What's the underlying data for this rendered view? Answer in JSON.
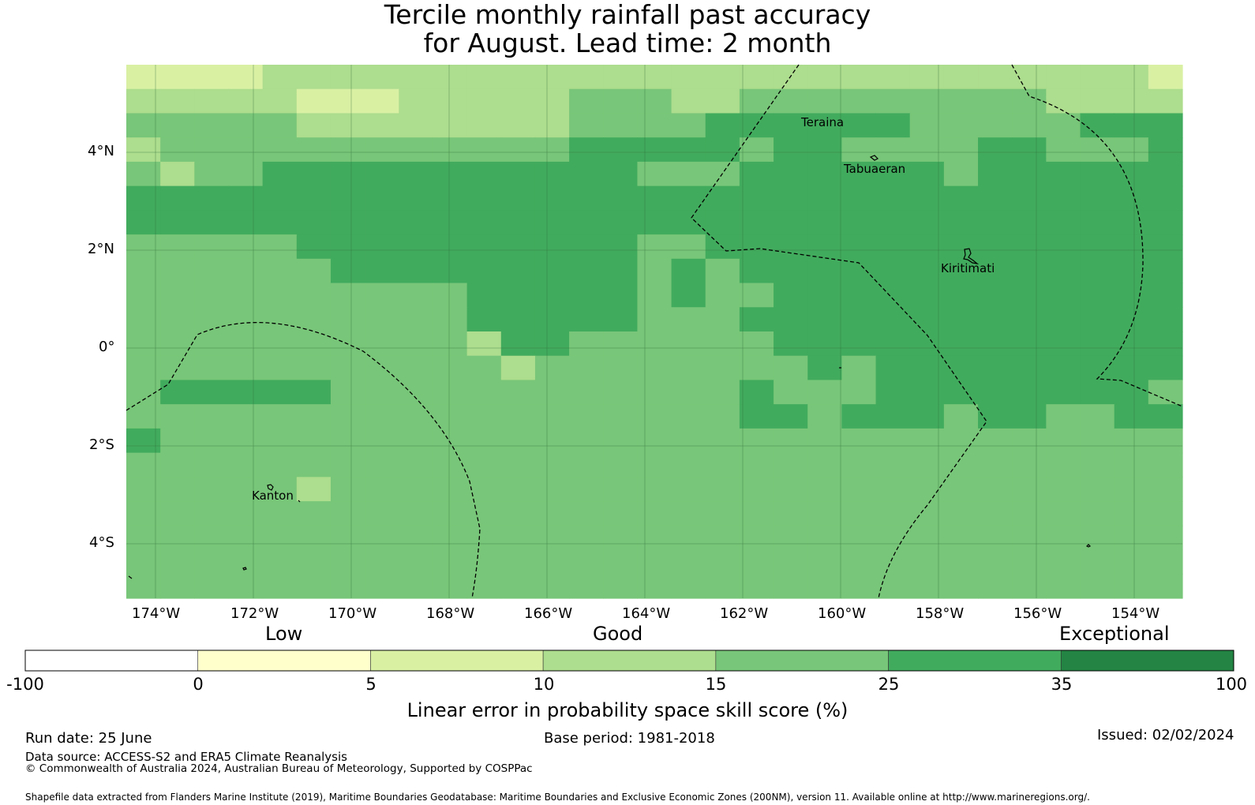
{
  "title": {
    "line1": "Tercile monthly rainfall past accuracy",
    "line2": "for August. Lead time: 2 month"
  },
  "map": {
    "lat_labels": [
      "4°N",
      "2°N",
      "0°",
      "2°S",
      "4°S"
    ],
    "lon_labels": [
      "174°W",
      "172°W",
      "170°W",
      "168°W",
      "166°W",
      "164°W",
      "162°W",
      "160°W",
      "158°W",
      "156°W",
      "154°W"
    ],
    "places": [
      "Teraina",
      "Tabuaeran",
      "Kiritimati",
      "Kanton"
    ],
    "level_colors": [
      "#ffffff",
      "#ffffcc",
      "#d9f0a3",
      "#addd8e",
      "#78c679",
      "#41ab5d",
      "#238443"
    ],
    "grid_rows": [
      "2222333333333333333333333333332",
      "3333322233333444334444444443333",
      "4444433333333444455555544444555",
      "3444444444444555554554444554445",
      "4344555555555554445555554555555",
      "5555555555555555555555555555555",
      "5555555555555555555555555555555",
      "4444455555555554455555555555555",
      "4444445555555554545555555555555",
      "4444444444555554544555555555555",
      "4444444444555554445555555555555",
      "4444444444355444444555555555555",
      "4444444444434444444454555555555",
      "4555554444444444445444555555554",
      "4444444444444444445545554554455",
      "5444444444444444444444444444444",
      "4444444444444444444444444444444",
      "4444434444444444444444444444444",
      "4444444444444444444444444444444",
      "4444444444444444444444444444444",
      "4444444444444444444444444444444",
      "4444444444444444444444444444444"
    ]
  },
  "colorbar": {
    "category_labels": [
      "Low",
      "Good",
      "Exceptional"
    ],
    "ticks": [
      "-100",
      "0",
      "5",
      "10",
      "15",
      "25",
      "35",
      "100"
    ],
    "colors": [
      "#ffffff",
      "#ffffcc",
      "#d9f0a3",
      "#addd8e",
      "#78c679",
      "#41ab5d",
      "#238443"
    ],
    "label": "Linear error in probability space skill score (%)"
  },
  "footer": {
    "run_date": "Run date: 25 June",
    "base_period": "Base period: 1981-2018",
    "issued": "Issued: 02/02/2024",
    "data_source": "Data source: ACCESS-S2 and ERA5 Climate Reanalysis",
    "copyright": "© Commonwealth of Australia 2024, Australian Bureau of Meteorology, Supported by COSPPac",
    "shapefile": "Shapefile data extracted from Flanders Marine Institute (2019), Maritime Boundaries Geodatabase: Maritime Boundaries and Exclusive Economic Zones (200NM), version 11. Available online at http://www.marineregions.org/."
  }
}
